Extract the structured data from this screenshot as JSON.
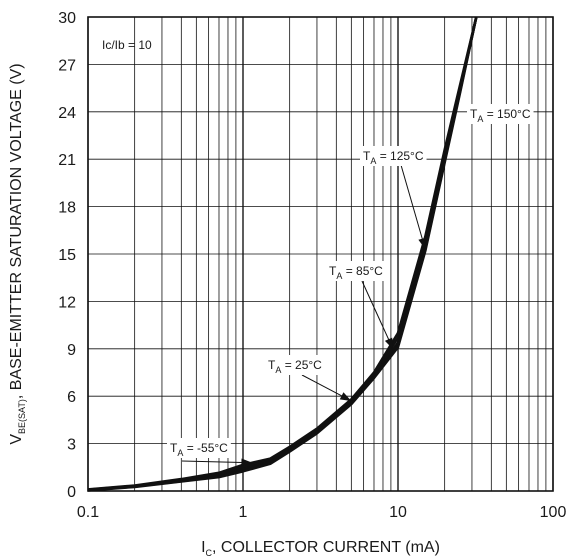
{
  "chart_data": {
    "type": "line",
    "xlabel": "I",
    "xlabel_sub": "C",
    "xlabel_rest": ", COLLECTOR CURRENT (mA)",
    "ylabel": "V",
    "ylabel_sub": "BE(SAT)",
    "ylabel_rest": ", BASE-EMITTER SATURATION VOLTAGE (V)",
    "xscale": "log",
    "xlim": [
      0.1,
      100
    ],
    "ylim": [
      0,
      30
    ],
    "x_tick_labels": [
      "0.1",
      "1",
      "10",
      "100"
    ],
    "y_tick_labels": [
      "0",
      "3",
      "6",
      "9",
      "12",
      "15",
      "18",
      "21",
      "24",
      "27",
      "30"
    ],
    "grid": true,
    "condition_label": "Ic/Ib = 10",
    "series": [
      {
        "name": "T_A = -55°C",
        "x": [
          0.1,
          0.2,
          0.4,
          0.7,
          1.0,
          1.5,
          2.0,
          3.0,
          5.0,
          7.0,
          10,
          15,
          20,
          25,
          32
        ],
        "y": [
          0.1,
          0.35,
          0.75,
          1.15,
          1.65,
          2.05,
          2.8,
          3.95,
          5.8,
          7.5,
          10.0,
          16.1,
          21.6,
          25.6,
          30.0
        ]
      },
      {
        "name": "T_A = 25°C",
        "x": [
          0.1,
          0.2,
          0.4,
          0.7,
          1.0,
          1.5,
          2.0,
          3.0,
          5.0,
          7.0,
          10,
          15,
          20,
          25,
          32
        ],
        "y": [
          0.08,
          0.32,
          0.7,
          1.05,
          1.5,
          1.95,
          2.7,
          3.85,
          5.7,
          7.4,
          9.7,
          15.8,
          21.3,
          25.4,
          30.0
        ]
      },
      {
        "name": "T_A = 85°C",
        "x": [
          0.1,
          0.2,
          0.4,
          0.7,
          1.0,
          1.5,
          2.0,
          3.0,
          5.0,
          7.0,
          10,
          15,
          20,
          25,
          32
        ],
        "y": [
          0.06,
          0.3,
          0.65,
          0.98,
          1.38,
          1.85,
          2.6,
          3.75,
          5.6,
          7.3,
          9.4,
          15.5,
          21.1,
          25.3,
          30.0
        ]
      },
      {
        "name": "T_A = 125°C",
        "x": [
          0.1,
          0.2,
          0.4,
          0.7,
          1.0,
          1.5,
          2.0,
          3.0,
          5.0,
          7.0,
          10,
          15,
          20,
          25,
          32
        ],
        "y": [
          0.05,
          0.28,
          0.62,
          0.92,
          1.3,
          1.78,
          2.55,
          3.7,
          5.55,
          7.2,
          9.2,
          15.3,
          20.9,
          25.2,
          30.0
        ]
      },
      {
        "name": "T_A = 150°C",
        "x": [
          0.1,
          0.2,
          0.4,
          0.7,
          1.0,
          1.5,
          2.0,
          3.0,
          5.0,
          7.0,
          10,
          15,
          20,
          25,
          32
        ],
        "y": [
          0.04,
          0.26,
          0.6,
          0.88,
          1.25,
          1.72,
          2.5,
          3.65,
          5.5,
          7.15,
          9.1,
          15.2,
          20.8,
          25.1,
          30.0
        ]
      }
    ],
    "annotations": [
      {
        "label": "T",
        "sub": "A",
        "rest": " = -55°C",
        "series": 0
      },
      {
        "label": "T",
        "sub": "A",
        "rest": " = 25°C",
        "series": 1
      },
      {
        "label": "T",
        "sub": "A",
        "rest": " = 85°C",
        "series": 2
      },
      {
        "label": "T",
        "sub": "A",
        "rest": " = 125°C",
        "series": 3
      },
      {
        "label": "T",
        "sub": "A",
        "rest": " = 150°C",
        "series": 4
      }
    ]
  }
}
